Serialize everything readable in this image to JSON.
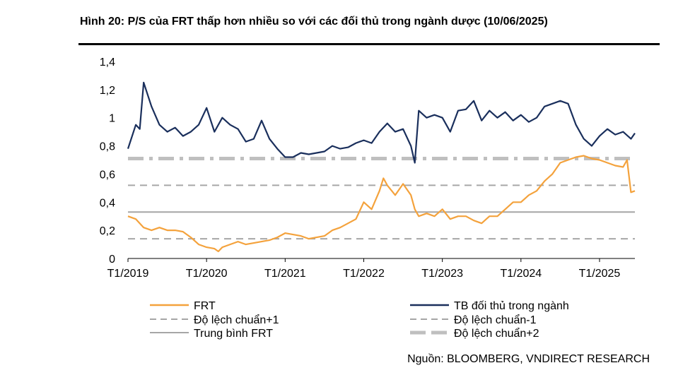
{
  "title": "Hình 20: P/S của FRT thấp hơn nhiều so với các đối thủ trong ngành dược (10/06/2025)",
  "source": "Nguồn: BLOOMBERG, VNDIRECT RESEARCH",
  "chart_data": {
    "type": "line",
    "title": "",
    "xlabel": "",
    "ylabel": "",
    "ylim": [
      0,
      1.4
    ],
    "yticks": [
      0,
      0.2,
      0.4,
      0.6,
      0.8,
      1.0,
      1.2,
      1.4
    ],
    "ytick_labels": [
      "0",
      "0,2",
      "0,4",
      "0,6",
      "0,8",
      "1",
      "1,2",
      "1,4"
    ],
    "xlim": [
      2019.0,
      2025.45
    ],
    "xticks": [
      2019,
      2020,
      2021,
      2022,
      2023,
      2024,
      2025
    ],
    "xtick_labels": [
      "T1/2019",
      "T1/2020",
      "T1/2021",
      "T1/2022",
      "T1/2023",
      "T1/2024",
      "T1/2025"
    ],
    "grid": false,
    "legend_position": "bottom",
    "series": [
      {
        "name": "FRT",
        "color": "#F4A23C",
        "style": "solid",
        "x": [
          2019.0,
          2019.1,
          2019.2,
          2019.3,
          2019.4,
          2019.5,
          2019.6,
          2019.7,
          2019.8,
          2019.9,
          2020.0,
          2020.1,
          2020.15,
          2020.2,
          2020.3,
          2020.4,
          2020.5,
          2020.6,
          2020.7,
          2020.8,
          2020.9,
          2021.0,
          2021.1,
          2021.2,
          2021.3,
          2021.4,
          2021.5,
          2021.6,
          2021.7,
          2021.8,
          2021.9,
          2022.0,
          2022.1,
          2022.2,
          2022.25,
          2022.3,
          2022.4,
          2022.5,
          2022.6,
          2022.65,
          2022.7,
          2022.8,
          2022.9,
          2023.0,
          2023.1,
          2023.2,
          2023.3,
          2023.4,
          2023.5,
          2023.6,
          2023.7,
          2023.8,
          2023.9,
          2024.0,
          2024.1,
          2024.2,
          2024.3,
          2024.4,
          2024.5,
          2024.6,
          2024.7,
          2024.8,
          2024.9,
          2025.0,
          2025.1,
          2025.2,
          2025.3,
          2025.35,
          2025.4,
          2025.45
        ],
        "y": [
          0.3,
          0.28,
          0.22,
          0.2,
          0.22,
          0.2,
          0.2,
          0.19,
          0.15,
          0.1,
          0.08,
          0.07,
          0.05,
          0.08,
          0.1,
          0.12,
          0.1,
          0.11,
          0.12,
          0.13,
          0.15,
          0.18,
          0.17,
          0.16,
          0.14,
          0.15,
          0.16,
          0.2,
          0.22,
          0.25,
          0.28,
          0.4,
          0.35,
          0.48,
          0.57,
          0.52,
          0.45,
          0.53,
          0.45,
          0.35,
          0.3,
          0.32,
          0.3,
          0.35,
          0.28,
          0.3,
          0.3,
          0.27,
          0.25,
          0.3,
          0.3,
          0.35,
          0.4,
          0.4,
          0.45,
          0.48,
          0.55,
          0.6,
          0.68,
          0.7,
          0.72,
          0.73,
          0.71,
          0.7,
          0.68,
          0.66,
          0.65,
          0.7,
          0.47,
          0.48
        ]
      },
      {
        "name": "TB đối thủ trong ngành",
        "color": "#1A2F5C",
        "style": "solid",
        "x": [
          2019.0,
          2019.1,
          2019.15,
          2019.2,
          2019.3,
          2019.4,
          2019.5,
          2019.6,
          2019.7,
          2019.8,
          2019.9,
          2020.0,
          2020.1,
          2020.2,
          2020.3,
          2020.4,
          2020.5,
          2020.6,
          2020.7,
          2020.8,
          2020.9,
          2021.0,
          2021.1,
          2021.2,
          2021.3,
          2021.4,
          2021.5,
          2021.6,
          2021.7,
          2021.8,
          2021.9,
          2022.0,
          2022.1,
          2022.2,
          2022.3,
          2022.4,
          2022.5,
          2022.6,
          2022.65,
          2022.7,
          2022.8,
          2022.9,
          2023.0,
          2023.1,
          2023.2,
          2023.3,
          2023.4,
          2023.5,
          2023.6,
          2023.7,
          2023.8,
          2023.9,
          2024.0,
          2024.1,
          2024.2,
          2024.3,
          2024.4,
          2024.5,
          2024.6,
          2024.7,
          2024.8,
          2024.9,
          2025.0,
          2025.1,
          2025.2,
          2025.3,
          2025.4,
          2025.45
        ],
        "y": [
          0.78,
          0.95,
          0.92,
          1.25,
          1.08,
          0.95,
          0.9,
          0.93,
          0.87,
          0.9,
          0.95,
          1.07,
          0.9,
          1.0,
          0.95,
          0.92,
          0.83,
          0.85,
          0.98,
          0.85,
          0.78,
          0.72,
          0.72,
          0.75,
          0.74,
          0.75,
          0.76,
          0.8,
          0.78,
          0.79,
          0.82,
          0.84,
          0.82,
          0.9,
          0.96,
          0.9,
          0.92,
          0.8,
          0.68,
          1.05,
          1.0,
          1.02,
          1.0,
          0.9,
          1.05,
          1.06,
          1.12,
          0.98,
          1.05,
          1.0,
          1.04,
          0.98,
          1.02,
          0.97,
          1.0,
          1.08,
          1.1,
          1.12,
          1.1,
          0.95,
          0.85,
          0.8,
          0.87,
          0.92,
          0.88,
          0.9,
          0.85,
          0.89
        ]
      },
      {
        "name": "Độ lệch chuẩn+1",
        "color": "#A6A6A6",
        "style": "dashed",
        "value": 0.52
      },
      {
        "name": "Độ lệch chuẩn-1",
        "color": "#A6A6A6",
        "style": "dashed",
        "value": 0.14
      },
      {
        "name": "Trung bình FRT",
        "color": "#A6A6A6",
        "style": "solid",
        "value": 0.33
      },
      {
        "name": "Độ lệch chuẩn+2",
        "color": "#BFBFBF",
        "style": "dash-dot",
        "value": 0.71
      }
    ]
  }
}
